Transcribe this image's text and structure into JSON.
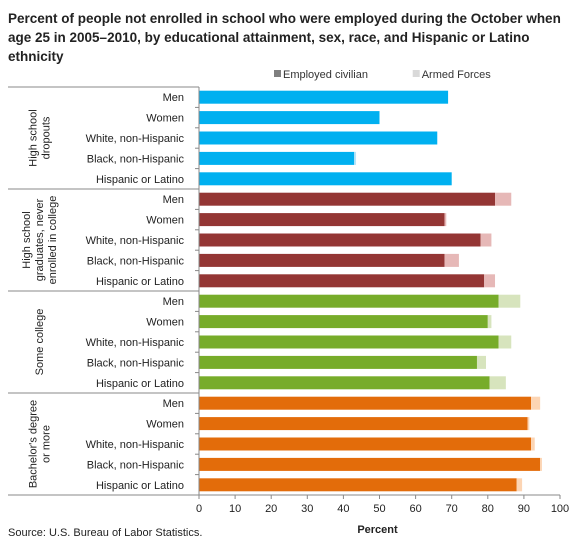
{
  "chart_data": {
    "type": "bar",
    "orientation": "horizontal",
    "stacked": true,
    "title": "Percent of people not enrolled in school who were employed during the October when age 25 in 2005–2010, by educational attainment, sex, race, and Hispanic or Latino ethnicity",
    "xlabel": "Percent",
    "xlim": [
      0,
      100
    ],
    "xticks": [
      0,
      10,
      20,
      30,
      40,
      50,
      60,
      70,
      80,
      90,
      100
    ],
    "legend": {
      "position": "top-right",
      "items": [
        {
          "label": "Employed civilian",
          "color": "#7f7f7f"
        },
        {
          "label": "Armed Forces",
          "color": "#d9d9d9"
        }
      ]
    },
    "categories": [
      "Men",
      "Women",
      "White, non-Hispanic",
      "Black, non-Hispanic",
      "Hispanic or Latino"
    ],
    "groups": [
      {
        "label": "High school dropouts",
        "label_lines": [
          "High school",
          "dropouts"
        ],
        "color": "#00b0f0",
        "color_light": "#b7e4f8",
        "employed_civilian": [
          69,
          50,
          66,
          43,
          70
        ],
        "armed_forces": [
          0,
          0,
          0,
          0.5,
          0
        ]
      },
      {
        "label": "High school graduates, never enrolled in college",
        "label_lines": [
          "High school",
          "graduates, never",
          "enrolled in college"
        ],
        "color": "#943634",
        "color_light": "#e6b8b7",
        "employed_civilian": [
          82,
          68,
          78,
          68,
          79
        ],
        "armed_forces": [
          4.5,
          0.5,
          3,
          4,
          3
        ]
      },
      {
        "label": "Some college",
        "label_lines": [
          "Some college"
        ],
        "color": "#77ac2a",
        "color_light": "#d7e4bd",
        "employed_civilian": [
          83,
          80,
          83,
          77,
          80.5
        ],
        "armed_forces": [
          6,
          1,
          3.5,
          2.5,
          4.5
        ]
      },
      {
        "label": "Bachelor's degree or more",
        "label_lines": [
          "Bachelor's degree",
          "or more"
        ],
        "color": "#e36c0a",
        "color_light": "#fcd5b4",
        "employed_civilian": [
          92,
          91,
          92,
          94.5,
          88
        ],
        "armed_forces": [
          2.5,
          0.5,
          1,
          0.5,
          1.5
        ]
      }
    ]
  },
  "source": "Source: U.S. Bureau of Labor Statistics."
}
